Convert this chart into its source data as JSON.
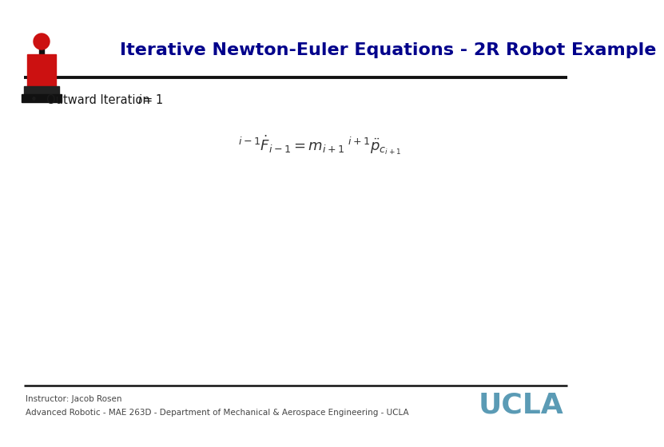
{
  "title": "Iterative Newton-Euler Equations - 2R Robot Example",
  "title_color": "#00008B",
  "title_fontsize": 16,
  "bullet_text": "Outward Iteration",
  "equation_str": "${}^{i-1}\\dot{F}_{i-1} = m_{i+1}\\; {}^{i+1}\\ddot{p}_{c_{i+1}}$",
  "footer_line1": "Instructor: Jacob Rosen",
  "footer_line2": "Advanced Robotic - MAE 263D - Department of Mechanical & Aerospace Engineering - UCLA",
  "footer_color": "#444444",
  "footer_fontsize": 7.5,
  "ucla_text": "UCLA",
  "ucla_color": "#5B9BB5",
  "ucla_fontsize": 26,
  "bg_color": "#ffffff",
  "separator_color": "#111111",
  "eq_color": "#333333",
  "eq_fontsize": 13
}
